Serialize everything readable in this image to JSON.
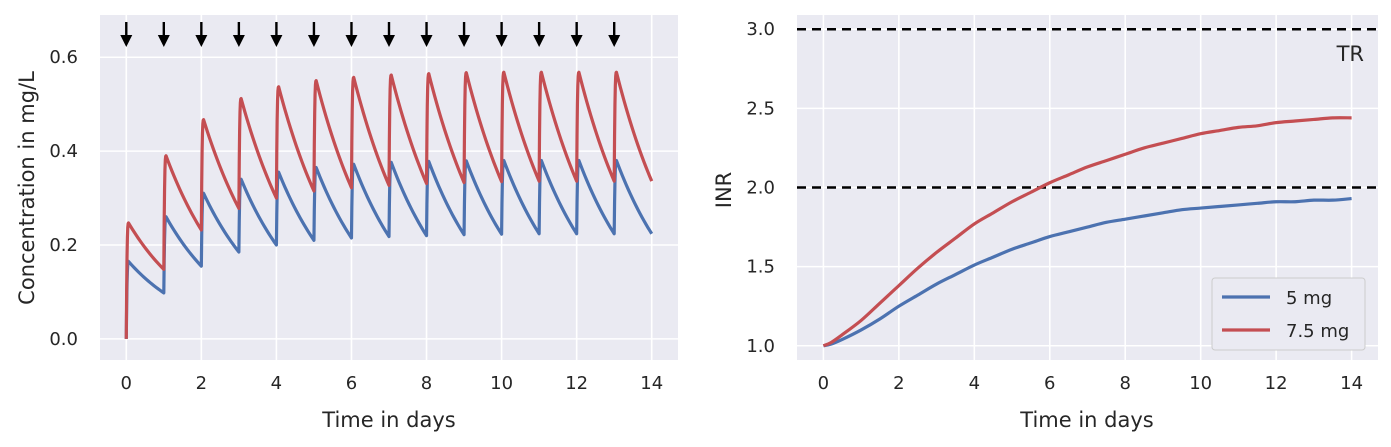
{
  "chart_data": [
    {
      "type": "line",
      "xlabel": "Time in days",
      "ylabel": "Concentration in mg/L",
      "xlim": [
        -0.7,
        14.7
      ],
      "ylim": [
        -0.045,
        0.69
      ],
      "xticks": [
        "0",
        "2",
        "4",
        "6",
        "8",
        "10",
        "12",
        "14"
      ],
      "yticks": [
        "0.0",
        "0.2",
        "0.4",
        "0.6"
      ],
      "xtick_values": [
        0,
        2,
        4,
        6,
        8,
        10,
        12,
        14
      ],
      "ytick_values": [
        0.0,
        0.2,
        0.4,
        0.6
      ],
      "grid": true,
      "dose_markers": {
        "glyph": "down-arrow",
        "days": [
          0,
          1,
          2,
          3,
          4,
          5,
          6,
          7,
          8,
          9,
          10,
          11,
          12,
          13
        ],
        "color": "#000000"
      },
      "series": [
        {
          "color": "#4c72b0",
          "daily_peaks": [
            0.165,
            0.26,
            0.31,
            0.34,
            0.355,
            0.365,
            0.372,
            0.376,
            0.378,
            0.379,
            0.38,
            0.38,
            0.38,
            0.38
          ],
          "daily_troughs": [
            0.098,
            0.155,
            0.185,
            0.2,
            0.21,
            0.215,
            0.218,
            0.22,
            0.222,
            0.223,
            0.224,
            0.224,
            0.224,
            0.224
          ]
        },
        {
          "color": "#c44e52",
          "daily_peaks": [
            0.247,
            0.39,
            0.467,
            0.512,
            0.537,
            0.55,
            0.557,
            0.562,
            0.565,
            0.567,
            0.568,
            0.568,
            0.568,
            0.568
          ],
          "daily_troughs": [
            0.148,
            0.232,
            0.278,
            0.3,
            0.315,
            0.322,
            0.327,
            0.331,
            0.333,
            0.335,
            0.336,
            0.336,
            0.336,
            0.336
          ]
        }
      ]
    },
    {
      "type": "line",
      "xlabel": "Time in days",
      "ylabel": "INR",
      "xlim": [
        -0.7,
        14.7
      ],
      "ylim": [
        0.91,
        3.09
      ],
      "xticks": [
        "0",
        "2",
        "4",
        "6",
        "8",
        "10",
        "12",
        "14"
      ],
      "yticks": [
        "1.0",
        "1.5",
        "2.0",
        "2.5",
        "3.0"
      ],
      "xtick_values": [
        0,
        2,
        4,
        6,
        8,
        10,
        12,
        14
      ],
      "ytick_values": [
        1.0,
        1.5,
        2.0,
        2.5,
        3.0
      ],
      "grid": true,
      "reference_lines": [
        {
          "y": 2.0,
          "style": "dashed",
          "color": "#000000"
        },
        {
          "y": 3.0,
          "style": "dashed",
          "color": "#000000"
        }
      ],
      "annotation": "TR",
      "legend_position": "bottom-right",
      "series": [
        {
          "name": "5 mg",
          "color": "#4c72b0",
          "x": [
            0,
            0.2,
            0.5,
            1,
            1.5,
            2,
            2.5,
            3,
            3.5,
            4,
            4.5,
            5,
            5.5,
            6,
            6.5,
            7,
            7.5,
            8,
            8.5,
            9,
            9.5,
            10,
            10.5,
            11,
            11.5,
            12,
            12.5,
            13,
            13.5,
            14
          ],
          "y": [
            1.0,
            1.01,
            1.04,
            1.1,
            1.17,
            1.25,
            1.32,
            1.39,
            1.45,
            1.51,
            1.56,
            1.61,
            1.65,
            1.69,
            1.72,
            1.75,
            1.78,
            1.8,
            1.82,
            1.84,
            1.86,
            1.87,
            1.88,
            1.89,
            1.9,
            1.91,
            1.91,
            1.92,
            1.92,
            1.93
          ]
        },
        {
          "name": "7.5 mg",
          "color": "#c44e52",
          "x": [
            0,
            0.2,
            0.5,
            1,
            1.5,
            2,
            2.5,
            3,
            3.5,
            4,
            4.5,
            5,
            5.5,
            6,
            6.5,
            7,
            7.5,
            8,
            8.5,
            9,
            9.5,
            10,
            10.5,
            11,
            11.5,
            12,
            12.5,
            13,
            13.5,
            14
          ],
          "y": [
            1.0,
            1.02,
            1.07,
            1.16,
            1.27,
            1.38,
            1.49,
            1.59,
            1.68,
            1.77,
            1.84,
            1.91,
            1.97,
            2.03,
            2.08,
            2.13,
            2.17,
            2.21,
            2.25,
            2.28,
            2.31,
            2.34,
            2.36,
            2.38,
            2.39,
            2.41,
            2.42,
            2.43,
            2.44,
            2.44
          ]
        }
      ]
    }
  ]
}
